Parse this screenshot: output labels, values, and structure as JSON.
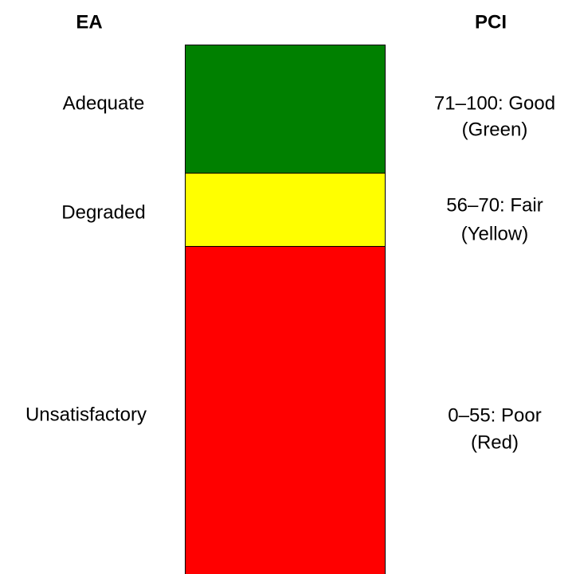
{
  "header": {
    "left": "EA",
    "right": "PCI"
  },
  "bands": [
    {
      "ea": "Adequate",
      "pci": [
        "71–100: Good",
        "(Green)"
      ],
      "color": "#008000"
    },
    {
      "ea": "Degraded",
      "pci": [
        "56–70: Fair",
        "(Yellow)"
      ],
      "color": "#ffff00"
    },
    {
      "ea": "Unsatisfactory",
      "pci": [
        "0–55: Poor",
        "(Red)"
      ],
      "color": "#ff0000"
    }
  ]
}
